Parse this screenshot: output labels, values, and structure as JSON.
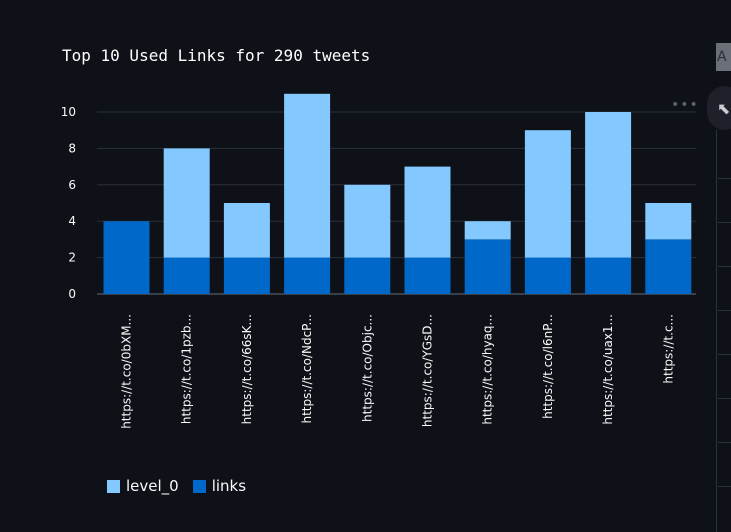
{
  "chart_data": {
    "type": "bar",
    "stacked": true,
    "title": "Top 10 Used Links for 290 tweets",
    "categories": [
      "https://t.co/0bXM...",
      "https://t.co/1pzb...",
      "https://t.co/66sK...",
      "https://t.co/NdcP...",
      "https://t.co/Objc...",
      "https://t.co/YGsD...",
      "https://t.co/hyaq...",
      "https://t.co/l6nP...",
      "https://t.co/uax1...",
      "https://t.c..."
    ],
    "series": [
      {
        "name": "links",
        "color": "#0068c9",
        "values": [
          4,
          2,
          2,
          2,
          2,
          2,
          3,
          2,
          2,
          3
        ]
      },
      {
        "name": "level_0",
        "color": "#83c9ff",
        "values": [
          0,
          6,
          3,
          9,
          4,
          5,
          1,
          7,
          8,
          2
        ]
      }
    ],
    "totals": [
      4,
      8,
      5,
      11,
      6,
      7,
      4,
      9,
      10,
      5
    ],
    "yticks": [
      0,
      2,
      4,
      6,
      8,
      10
    ],
    "ylim": [
      0,
      11
    ],
    "grid": true,
    "legend_position": "bottom-left"
  },
  "legend": {
    "items": [
      {
        "label": "level_0",
        "color": "#83c9ff"
      },
      {
        "label": "links",
        "color": "#0068c9"
      }
    ]
  },
  "ui": {
    "menu_dots": "•••",
    "corner_label": "A",
    "expand_icon": "⬉"
  }
}
